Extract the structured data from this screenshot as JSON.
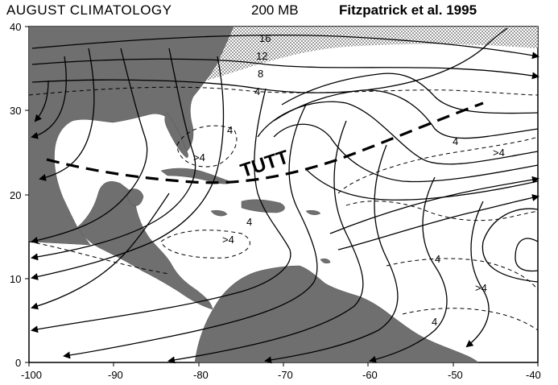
{
  "header": {
    "title": "AUGUST CLIMATOLOGY",
    "level": "200 MB",
    "source": "Fitzpatrick et al. 1995"
  },
  "axes": {
    "x_ticks": [
      "-100",
      "-90",
      "-80",
      "-70",
      "-60",
      "-50",
      "-40"
    ],
    "y_ticks": [
      "40",
      "30",
      "20",
      "10",
      "0"
    ]
  },
  "annotations": {
    "tutt": "TUTT",
    "isotachs": [
      "16",
      "12",
      "8",
      "4",
      "4",
      ">4",
      "4",
      ">4",
      ">4",
      "4",
      "4",
      ">4",
      "4"
    ]
  },
  "colors": {
    "land": "#6f6f6f",
    "stipple": "#9a9a9a",
    "line": "#000000"
  }
}
